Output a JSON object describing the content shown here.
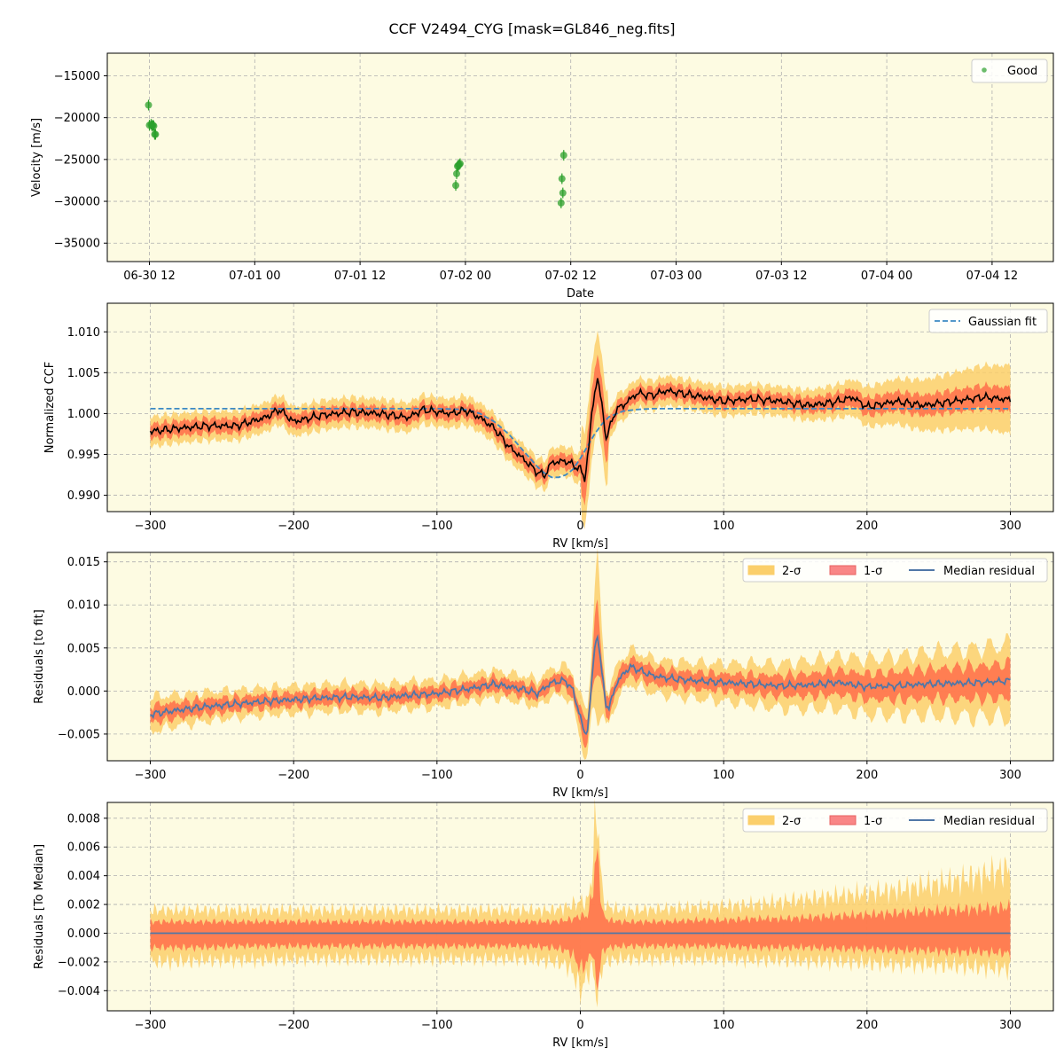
{
  "figure": {
    "title": "CCF V2494_CYG [mask=GL846_neg.fits]"
  },
  "colors": {
    "panel_bg": "#fdfbe2",
    "grid": "#b0b0b0",
    "good_points": "#2ca02c",
    "gaussian_fit": "#3c8ac4",
    "ccf_line": "#000000",
    "band_2sigma": "#fbcf6b",
    "band_1sigma": "#ff6f4a",
    "legend_1sigma_patch": "#f98686",
    "median_residual": "#5077a7"
  },
  "chart_data": [
    {
      "type": "scatter",
      "ylabel": "Velocity [m/s]",
      "xlabel": "Date",
      "x_tick_labels": [
        "06-30 12",
        "07-01 00",
        "07-01 12",
        "07-02 00",
        "07-02 12",
        "07-03 00",
        "07-03 12",
        "07-04 00",
        "07-04 12"
      ],
      "x_range_hours_from_06-30_00": [
        7,
        61.8
      ],
      "ylim": [
        -37200,
        -12300
      ],
      "y_ticks": [
        -35000,
        -30000,
        -25000,
        -20000,
        -15000
      ],
      "y_tick_labels": [
        "−35000",
        "−30000",
        "−25000",
        "−20000",
        "−15000"
      ],
      "grid": true,
      "legend": "upper right",
      "series": [
        {
          "name": "Good",
          "x_hours_from_06-30_00": [
            11.9,
            12.0,
            12.2,
            12.3,
            12.4,
            12.5,
            12.6,
            12.7,
            46.9,
            47.0,
            47.1,
            47.2,
            47.3,
            47.4,
            58.9,
            59.0,
            59.1,
            59.2
          ],
          "y": [
            -18500,
            -20900,
            -20800,
            -21000,
            -20900,
            -21000,
            -22000,
            -22000,
            -28100,
            -26700,
            -25800,
            -25700,
            -25600,
            -25500,
            -30200,
            -27300,
            -29000,
            -24500
          ]
        }
      ]
    },
    {
      "type": "line",
      "ylabel": "Normalized CCF",
      "xlabel": "RV [km/s]",
      "xlim": [
        -330,
        330
      ],
      "ylim": [
        0.988,
        1.0135
      ],
      "x_ticks": [
        -300,
        -200,
        -100,
        0,
        100,
        200,
        300
      ],
      "x_tick_labels": [
        "−300",
        "−200",
        "−100",
        "0",
        "100",
        "200",
        "300"
      ],
      "y_ticks": [
        0.99,
        0.995,
        1.0,
        1.005,
        1.01
      ],
      "y_tick_labels": [
        "0.990",
        "0.995",
        "1.000",
        "1.005",
        "1.010"
      ],
      "grid": true,
      "legend": "upper right",
      "series": [
        {
          "name": "Gaussian fit",
          "style": "dashed",
          "x": [
            -300,
            -200,
            -100,
            -80,
            -70,
            -60,
            -50,
            -40,
            -30,
            -25,
            -20,
            -15,
            -10,
            -5,
            0,
            5,
            10,
            15,
            20,
            30,
            40,
            50,
            60,
            80,
            100,
            200,
            300
          ],
          "y": [
            1.0006,
            1.0006,
            1.0006,
            1.0005,
            1.0,
            0.999,
            0.9975,
            0.9955,
            0.9935,
            0.9927,
            0.9922,
            0.9922,
            0.9925,
            0.9932,
            0.9945,
            0.996,
            0.9975,
            0.9987,
            0.9996,
            1.0003,
            1.0005,
            1.0006,
            1.0006,
            1.0006,
            1.0006,
            1.0006,
            1.0006
          ]
        },
        {
          "name": "CCF",
          "x": [
            -300,
            -280,
            -260,
            -240,
            -220,
            -210,
            -200,
            -180,
            -160,
            -140,
            -120,
            -110,
            -100,
            -90,
            -80,
            -70,
            -60,
            -50,
            -40,
            -30,
            -25,
            -20,
            -10,
            0,
            3,
            6,
            8,
            10,
            12,
            15,
            18,
            20,
            25,
            30,
            35,
            40,
            50,
            60,
            80,
            100,
            120,
            140,
            160,
            180,
            190,
            200,
            220,
            240,
            260,
            280,
            300
          ],
          "y": [
            0.9978,
            0.9982,
            0.9985,
            0.9985,
            0.9995,
            1.0005,
            0.999,
            0.9998,
            1.0002,
            1.0,
            0.9995,
            1.0005,
            1.0002,
            1.0,
            1.0004,
            0.9995,
            0.9982,
            0.996,
            0.9945,
            0.9928,
            0.9924,
            0.994,
            0.9942,
            0.9932,
            0.992,
            0.996,
            1.0,
            1.0025,
            1.0045,
            1.001,
            0.997,
            0.998,
            1.0005,
            1.001,
            1.0018,
            1.0025,
            1.0022,
            1.0028,
            1.0022,
            1.0015,
            1.0018,
            1.0015,
            1.001,
            1.0015,
            1.002,
            1.0008,
            1.0015,
            1.001,
            1.0015,
            1.002,
            1.0017
          ]
        }
      ]
    },
    {
      "type": "area",
      "ylabel": "Residuals [to fit]",
      "xlabel": "RV [km/s]",
      "xlim": [
        -330,
        330
      ],
      "ylim": [
        -0.0081,
        0.0161
      ],
      "x_ticks": [
        -300,
        -200,
        -100,
        0,
        100,
        200,
        300
      ],
      "x_tick_labels": [
        "−300",
        "−200",
        "−100",
        "0",
        "100",
        "200",
        "300"
      ],
      "y_ticks": [
        -0.005,
        0.0,
        0.005,
        0.01,
        0.015
      ],
      "y_tick_labels": [
        "−0.005",
        "0.000",
        "0.005",
        "0.010",
        "0.015"
      ],
      "grid": true,
      "legend": "upper right",
      "legend_labels": [
        "2-σ",
        "1-σ",
        "Median residual"
      ],
      "x": [
        -300,
        -280,
        -260,
        -240,
        -220,
        -200,
        -180,
        -160,
        -140,
        -120,
        -100,
        -80,
        -60,
        -50,
        -40,
        -30,
        -20,
        -10,
        -5,
        0,
        3,
        5,
        8,
        10,
        12,
        15,
        18,
        20,
        25,
        30,
        35,
        40,
        50,
        60,
        80,
        100,
        120,
        140,
        160,
        180,
        200,
        220,
        240,
        260,
        280,
        300
      ],
      "median": [
        -0.0027,
        -0.0022,
        -0.0018,
        -0.0015,
        -0.0012,
        -0.001,
        -0.0008,
        -0.0007,
        -0.0008,
        -0.0005,
        -0.0003,
        0.0002,
        0.0008,
        0.0005,
        0.0002,
        -0.0003,
        0.001,
        0.0012,
        0.0,
        -0.003,
        -0.005,
        -0.0045,
        0.001,
        0.005,
        0.0067,
        0.002,
        -0.0015,
        -0.002,
        0.0008,
        0.002,
        0.0028,
        0.0025,
        0.0018,
        0.0015,
        0.0012,
        0.001,
        0.0008,
        0.0006,
        0.0007,
        0.001,
        0.0005,
        0.0006,
        0.0008,
        0.0009,
        0.001,
        0.0012
      ],
      "sigma1": [
        0.001,
        0.0009,
        0.0009,
        0.0008,
        0.0008,
        0.0008,
        0.0008,
        0.0008,
        0.0008,
        0.0008,
        0.0008,
        0.0008,
        0.0008,
        0.0008,
        0.0008,
        0.0008,
        0.0008,
        0.0009,
        0.001,
        0.0012,
        0.0014,
        0.0015,
        0.002,
        0.003,
        0.0035,
        0.002,
        0.0012,
        0.001,
        0.001,
        0.001,
        0.001,
        0.001,
        0.001,
        0.001,
        0.001,
        0.001,
        0.0011,
        0.0012,
        0.0013,
        0.0014,
        0.0015,
        0.0016,
        0.0017,
        0.0018,
        0.0019,
        0.002
      ],
      "sigma2": [
        0.002,
        0.0018,
        0.0017,
        0.0016,
        0.0016,
        0.0016,
        0.0016,
        0.0016,
        0.0016,
        0.0016,
        0.0016,
        0.0016,
        0.0016,
        0.0016,
        0.0016,
        0.0016,
        0.0016,
        0.0018,
        0.002,
        0.0024,
        0.0028,
        0.003,
        0.0045,
        0.007,
        0.0085,
        0.0045,
        0.0025,
        0.002,
        0.002,
        0.002,
        0.002,
        0.002,
        0.002,
        0.002,
        0.0021,
        0.0022,
        0.0024,
        0.0026,
        0.0028,
        0.003,
        0.0032,
        0.0034,
        0.0036,
        0.0038,
        0.004,
        0.0043
      ]
    },
    {
      "type": "area",
      "ylabel": "Residuals [To Median]",
      "xlabel": "RV [km/s]",
      "xlim": [
        -330,
        330
      ],
      "ylim": [
        -0.0054,
        0.0091
      ],
      "x_ticks": [
        -300,
        -200,
        -100,
        0,
        100,
        200,
        300
      ],
      "x_tick_labels": [
        "−300",
        "−200",
        "−100",
        "0",
        "100",
        "200",
        "300"
      ],
      "y_ticks": [
        -0.004,
        -0.002,
        0.0,
        0.002,
        0.004,
        0.006,
        0.008
      ],
      "y_tick_labels": [
        "−0.004",
        "−0.002",
        "0.000",
        "0.002",
        "0.004",
        "0.006",
        "0.008"
      ],
      "grid": true,
      "legend": "upper right",
      "legend_labels": [
        "2-σ",
        "1-σ",
        "Median residual"
      ],
      "x": [
        -300,
        -280,
        -260,
        -240,
        -220,
        -200,
        -180,
        -160,
        -140,
        -120,
        -100,
        -80,
        -60,
        -40,
        -20,
        -10,
        -5,
        0,
        5,
        8,
        10,
        12,
        14,
        16,
        20,
        30,
        40,
        60,
        80,
        100,
        120,
        140,
        160,
        180,
        200,
        220,
        240,
        260,
        280,
        300
      ],
      "median": [
        0,
        0,
        0,
        0,
        0,
        0,
        0,
        0,
        0,
        0,
        0,
        0,
        0,
        0,
        0,
        0,
        0,
        0,
        0,
        0,
        0,
        0,
        0,
        0,
        0,
        0,
        0,
        0,
        0,
        0,
        0,
        0,
        0,
        0,
        0,
        0,
        0,
        0,
        0,
        0
      ],
      "sigma1_upper": [
        0.0008,
        0.0008,
        0.0008,
        0.0008,
        0.0008,
        0.0008,
        0.0008,
        0.0008,
        0.0008,
        0.0008,
        0.0008,
        0.0008,
        0.0008,
        0.0008,
        0.0008,
        0.0009,
        0.001,
        0.0012,
        0.0012,
        0.0025,
        0.0045,
        0.0055,
        0.003,
        0.0012,
        0.0009,
        0.0008,
        0.0008,
        0.0008,
        0.0009,
        0.0009,
        0.001,
        0.001,
        0.0011,
        0.0012,
        0.0013,
        0.0014,
        0.0015,
        0.0016,
        0.0017,
        0.0018
      ],
      "sigma1_lower": [
        -0.001,
        -0.001,
        -0.001,
        -0.0009,
        -0.0009,
        -0.0009,
        -0.0009,
        -0.0009,
        -0.0009,
        -0.0009,
        -0.0009,
        -0.0009,
        -0.0009,
        -0.0009,
        -0.001,
        -0.0012,
        -0.0015,
        -0.0025,
        -0.002,
        -0.0012,
        -0.0025,
        -0.004,
        -0.002,
        -0.0012,
        -0.001,
        -0.0009,
        -0.0009,
        -0.0009,
        -0.0009,
        -0.0009,
        -0.001,
        -0.001,
        -0.001,
        -0.0011,
        -0.0011,
        -0.0012,
        -0.0012,
        -0.0013,
        -0.0013,
        -0.0014
      ],
      "sigma2_upper": [
        0.0016,
        0.0016,
        0.0016,
        0.0016,
        0.0016,
        0.0016,
        0.0016,
        0.0016,
        0.0016,
        0.0016,
        0.0016,
        0.0016,
        0.0016,
        0.0016,
        0.0016,
        0.0018,
        0.002,
        0.0022,
        0.0022,
        0.004,
        0.007,
        0.0085,
        0.005,
        0.0022,
        0.0018,
        0.0016,
        0.0016,
        0.0017,
        0.0018,
        0.0019,
        0.002,
        0.0022,
        0.0024,
        0.0026,
        0.0028,
        0.003,
        0.0033,
        0.0036,
        0.004,
        0.0045
      ],
      "sigma2_lower": [
        -0.002,
        -0.002,
        -0.0019,
        -0.0019,
        -0.0019,
        -0.0018,
        -0.0018,
        -0.0018,
        -0.0018,
        -0.0018,
        -0.0018,
        -0.0018,
        -0.0018,
        -0.0018,
        -0.002,
        -0.0022,
        -0.0028,
        -0.004,
        -0.003,
        -0.0022,
        -0.0035,
        -0.0045,
        -0.003,
        -0.0022,
        -0.0019,
        -0.0018,
        -0.0018,
        -0.0018,
        -0.0018,
        -0.0018,
        -0.0019,
        -0.0019,
        -0.002,
        -0.002,
        -0.0021,
        -0.0022,
        -0.0022,
        -0.0023,
        -0.0024,
        -0.0025
      ]
    }
  ]
}
